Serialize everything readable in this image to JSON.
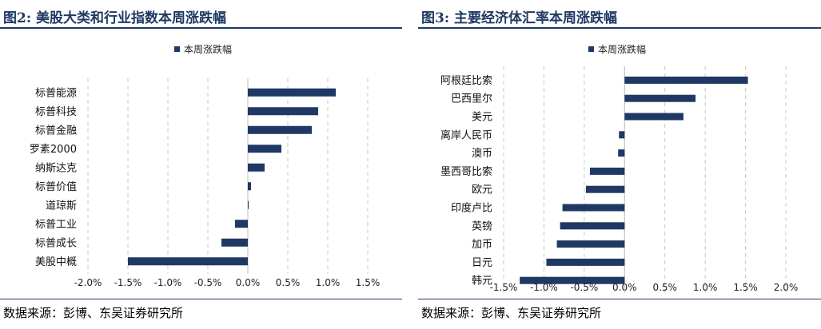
{
  "panels": [
    {
      "title": "图2: 美股大类和行业指数本周涨跌幅",
      "source": "数据来源：彭博、东吴证券研究所",
      "chart_data": {
        "type": "bar",
        "orientation": "horizontal",
        "categories": [
          "标普能源",
          "标普科技",
          "标普金融",
          "罗素2000",
          "纳斯达克",
          "标普价值",
          "道琼斯",
          "标普工业",
          "标普成长",
          "美股中概"
        ],
        "series": [
          {
            "name": "本周涨跌幅",
            "values": [
              1.1,
              0.88,
              0.8,
              0.42,
              0.21,
              0.04,
              0.01,
              -0.16,
              -0.33,
              -1.5
            ]
          }
        ],
        "xlim": [
          -2.0,
          1.5
        ],
        "xticks": [
          -2.0,
          -1.5,
          -1.0,
          -0.5,
          0.0,
          0.5,
          1.0,
          1.5
        ],
        "tick_labels": [
          "-2.0%",
          "-1.5%",
          "-1.0%",
          "-0.5%",
          "0.0%",
          "0.5%",
          "1.0%",
          "1.5%"
        ],
        "grid": "vertical dashed",
        "legend": "top-center",
        "bar_color": "#1f3864"
      }
    },
    {
      "title": "图3: 主要经济体汇率本周涨跌幅",
      "source": "数据来源：彭博、东吴证券研究所",
      "chart_data": {
        "type": "bar",
        "orientation": "horizontal",
        "categories": [
          "阿根廷比索",
          "巴西里尔",
          "美元",
          "离岸人民币",
          "澳币",
          "墨西哥比索",
          "欧元",
          "印度卢比",
          "英镑",
          "加币",
          "日元",
          "韩元"
        ],
        "series": [
          {
            "name": "本周涨跌幅",
            "values": [
              1.53,
              0.88,
              0.73,
              -0.07,
              -0.08,
              -0.43,
              -0.48,
              -0.77,
              -0.8,
              -0.84,
              -0.97,
              -1.3
            ]
          }
        ],
        "xlim": [
          -1.5,
          2.0
        ],
        "xticks": [
          -1.5,
          -1.0,
          -0.5,
          0.0,
          0.5,
          1.0,
          1.5,
          2.0
        ],
        "tick_labels": [
          "-1.5%",
          "-1.0%",
          "-0.5%",
          "0.0%",
          "0.5%",
          "1.0%",
          "1.5%",
          "2.0%"
        ],
        "grid": "vertical dashed",
        "legend": "top-center",
        "bar_color": "#1f3864"
      }
    }
  ]
}
